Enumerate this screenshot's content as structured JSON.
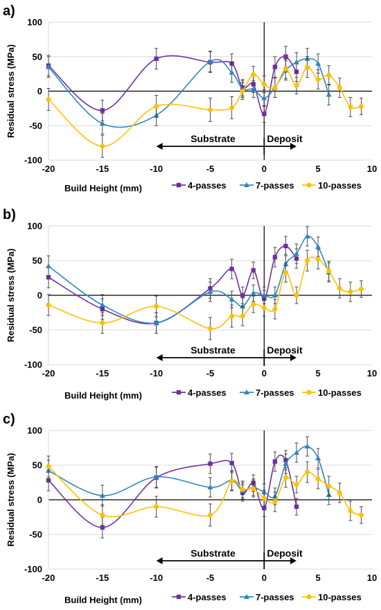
{
  "chart_data": [
    {
      "type": "line",
      "panel_label": "a)",
      "xlabel": "Build Height (mm)",
      "ylabel": "Residual stress (MPa)",
      "xlim": [
        -20,
        10
      ],
      "ylim": [
        -100,
        100
      ],
      "xticks": [
        -20,
        -15,
        -10,
        -5,
        0,
        5,
        10
      ],
      "yticks": [
        -100,
        -50,
        0,
        50,
        100
      ],
      "grid": "horizontal",
      "legend_position": "bottom-right",
      "annotations": {
        "left": "Substrate",
        "right": "Deposit",
        "arrow_from": -10,
        "arrow_split": 0,
        "arrow_to": 3,
        "arrow_y": -80
      },
      "series": [
        {
          "name": "4-passes",
          "color": "#7030a0",
          "marker": "square",
          "x": [
            -20,
            -15,
            -10,
            -5,
            -3,
            -2,
            -1,
            0,
            1,
            2,
            3
          ],
          "y": [
            37,
            -28,
            47,
            42,
            40,
            5,
            10,
            -33,
            35,
            50,
            28
          ],
          "err": [
            15,
            15,
            15,
            15,
            14,
            12,
            12,
            12,
            15,
            15,
            14
          ]
        },
        {
          "name": "7-passes",
          "color": "#2e86c1",
          "marker": "triangle",
          "x": [
            -20,
            -15,
            -10,
            -5,
            -3,
            -2,
            -1,
            0,
            1,
            2,
            3,
            4,
            5,
            6
          ],
          "y": [
            35,
            -47,
            -35,
            43,
            27,
            3,
            3,
            -10,
            5,
            30,
            42,
            47,
            40,
            -5
          ],
          "err": [
            15,
            15,
            15,
            15,
            14,
            12,
            12,
            12,
            14,
            14,
            14,
            15,
            14,
            15
          ]
        },
        {
          "name": "10-passes",
          "color": "#ffc000",
          "marker": "circle",
          "x": [
            -20,
            -15,
            -10,
            -5,
            -3,
            -2,
            -1,
            0,
            1,
            2,
            3,
            4,
            5,
            6,
            7,
            8,
            9
          ],
          "y": [
            -12,
            -80,
            -22,
            -27,
            -24,
            0,
            24,
            10,
            5,
            32,
            8,
            35,
            17,
            23,
            5,
            -23,
            -22
          ],
          "err": [
            16,
            16,
            16,
            17,
            16,
            12,
            12,
            12,
            14,
            14,
            12,
            15,
            14,
            14,
            14,
            14,
            12
          ]
        }
      ]
    },
    {
      "type": "line",
      "panel_label": "b)",
      "xlabel": "Build Height (mm)",
      "ylabel": "Residual stress (MPa)",
      "xlim": [
        -20,
        10
      ],
      "ylim": [
        -100,
        100
      ],
      "xticks": [
        -20,
        -15,
        -10,
        -5,
        0,
        5,
        10
      ],
      "yticks": [
        -100,
        -50,
        0,
        50,
        100
      ],
      "grid": "horizontal",
      "legend_position": "bottom-right",
      "annotations": {
        "left": "Substrate",
        "right": "Deposit",
        "arrow_from": -10,
        "arrow_split": 0,
        "arrow_to": 3,
        "arrow_y": -90
      },
      "series": [
        {
          "name": "4-passes",
          "color": "#7030a0",
          "marker": "square",
          "x": [
            -20,
            -15,
            -10,
            -5,
            -3,
            -2,
            -1,
            0,
            1,
            2,
            3
          ],
          "y": [
            26,
            -20,
            -40,
            10,
            38,
            0,
            36,
            -5,
            55,
            71,
            53
          ],
          "err": [
            15,
            15,
            15,
            14,
            14,
            12,
            12,
            12,
            14,
            14,
            14
          ]
        },
        {
          "name": "7-passes",
          "color": "#2e86c1",
          "marker": "triangle",
          "x": [
            -20,
            -15,
            -10,
            -5,
            -3,
            -2,
            -1,
            0,
            1,
            2,
            3,
            4,
            5,
            6
          ],
          "y": [
            42,
            -14,
            -40,
            5,
            -6,
            -16,
            3,
            0,
            0,
            45,
            60,
            85,
            70,
            33
          ],
          "err": [
            15,
            15,
            15,
            14,
            12,
            12,
            12,
            12,
            12,
            14,
            14,
            14,
            14,
            14
          ]
        },
        {
          "name": "10-passes",
          "color": "#ffc000",
          "marker": "circle",
          "x": [
            -20,
            -15,
            -10,
            -5,
            -3,
            -2,
            -1,
            0,
            1,
            2,
            3,
            4,
            5,
            6,
            7,
            8,
            9
          ],
          "y": [
            -14,
            -40,
            -16,
            -48,
            -30,
            -30,
            -13,
            -18,
            -20,
            33,
            0,
            50,
            52,
            35,
            10,
            5,
            9
          ],
          "err": [
            15,
            15,
            15,
            16,
            16,
            14,
            12,
            12,
            14,
            14,
            12,
            15,
            14,
            14,
            14,
            14,
            12
          ]
        }
      ]
    },
    {
      "type": "line",
      "panel_label": "c)",
      "xlabel": "Build Height (mm)",
      "ylabel": "Residual stress (MPa)",
      "xlim": [
        -20,
        10
      ],
      "ylim": [
        -100,
        100
      ],
      "xticks": [
        -20,
        -15,
        -10,
        -5,
        0,
        5,
        10
      ],
      "yticks": [
        -100,
        -50,
        0,
        50,
        100
      ],
      "grid": "horizontal",
      "legend_position": "bottom-right",
      "annotations": {
        "left": "Substrate",
        "right": "Deposit",
        "arrow_from": -10,
        "arrow_split": 0,
        "arrow_to": 3,
        "arrow_y": -88
      },
      "series": [
        {
          "name": "4-passes",
          "color": "#7030a0",
          "marker": "square",
          "x": [
            -20,
            -15,
            -10,
            -5,
            -3,
            -2,
            -1,
            0,
            1,
            2,
            3
          ],
          "y": [
            28,
            -40,
            32,
            52,
            53,
            10,
            24,
            -12,
            55,
            57,
            -10
          ],
          "err": [
            15,
            15,
            15,
            14,
            14,
            12,
            12,
            12,
            14,
            14,
            12
          ]
        },
        {
          "name": "7-passes",
          "color": "#2e86c1",
          "marker": "triangle",
          "x": [
            -20,
            -15,
            -10,
            -5,
            -3,
            -2,
            -1,
            0,
            1,
            2,
            3,
            4,
            5,
            6
          ],
          "y": [
            42,
            6,
            33,
            18,
            28,
            13,
            18,
            11,
            5,
            52,
            68,
            77,
            60,
            7
          ],
          "err": [
            15,
            15,
            15,
            14,
            14,
            12,
            12,
            12,
            12,
            14,
            14,
            14,
            14,
            14
          ]
        },
        {
          "name": "10-passes",
          "color": "#ffc000",
          "marker": "circle",
          "x": [
            -20,
            -15,
            -10,
            -5,
            -3,
            -2,
            -1,
            0,
            1,
            2,
            3,
            4,
            5,
            6,
            7,
            8,
            9
          ],
          "y": [
            48,
            -22,
            -10,
            -22,
            27,
            15,
            16,
            2,
            -3,
            32,
            22,
            40,
            30,
            20,
            10,
            -16,
            -22
          ],
          "err": [
            15,
            15,
            15,
            16,
            14,
            12,
            12,
            12,
            14,
            14,
            12,
            15,
            14,
            14,
            14,
            14,
            12
          ]
        }
      ]
    }
  ]
}
